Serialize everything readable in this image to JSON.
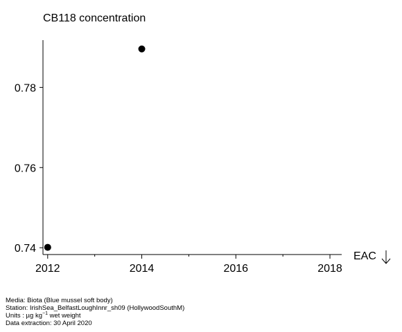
{
  "chart_data": {
    "type": "scatter",
    "title": "CB118 concentration",
    "xlabel": "",
    "ylabel": "",
    "xlim": [
      2011.9,
      2018.25
    ],
    "ylim": [
      0.7383,
      0.7918
    ],
    "x_ticks": [
      2012,
      2014,
      2016,
      2018
    ],
    "x_minor_ticks": [
      2013,
      2015,
      2017
    ],
    "y_ticks": [
      0.74,
      0.76,
      0.78
    ],
    "y_tick_labels": [
      "0.74",
      "0.76",
      "0.78"
    ],
    "grid": false,
    "series": [
      {
        "points": [
          {
            "x": 2012,
            "y": 0.7401
          },
          {
            "x": 2014,
            "y": 0.7896
          }
        ]
      }
    ],
    "annotation": "EAC"
  },
  "footer": {
    "media": "Media: Biota (Blue mussel soft body)",
    "station": "Station: IrishSea_BelfastLoughInnr_sh09 (HollywoodSouthM)",
    "units_prefix": "Units : µg kg",
    "units_exponent": "−1",
    "units_suffix": " wet weight",
    "extraction": "Data extraction: 30 April 2020"
  },
  "colors": {
    "marker": "#000000",
    "axis": "#000000",
    "background": "#ffffff"
  }
}
